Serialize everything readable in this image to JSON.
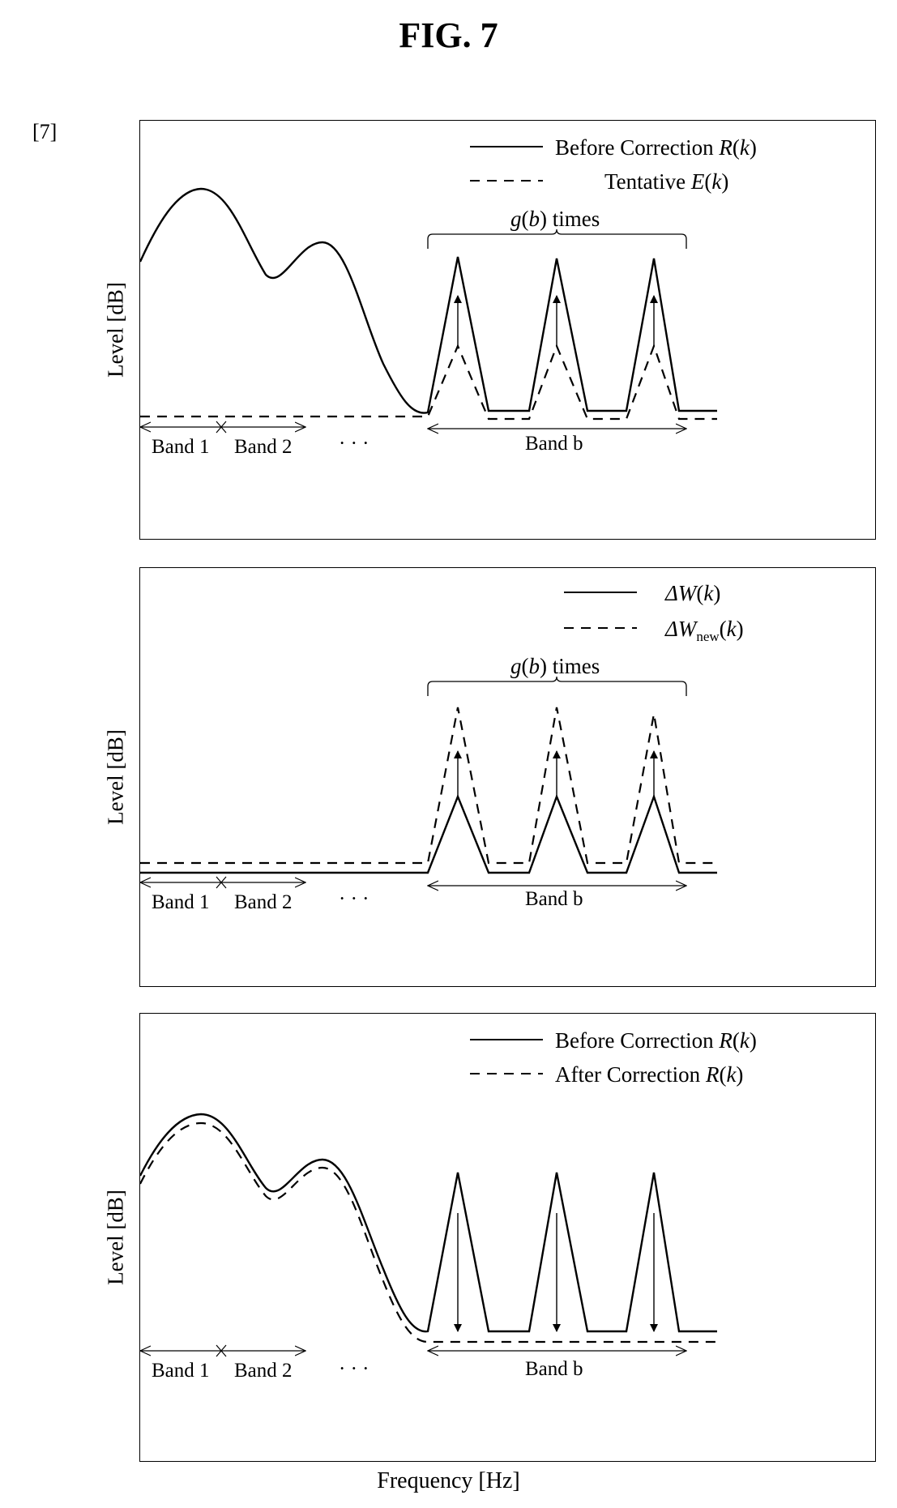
{
  "figure": {
    "title": "FIG. 7",
    "ref": "[7]",
    "x_axis_label": "Frequency [Hz]"
  },
  "panels": [
    {
      "y_axis_label": "Level [dB]",
      "legend": [
        {
          "style": "solid",
          "text": "Before Correction ",
          "math": "R",
          "arg": "k"
        },
        {
          "style": "dashed",
          "text": "Tentative ",
          "math": "E",
          "arg": "k"
        }
      ],
      "brace_text": "times",
      "brace_math": "g",
      "brace_arg": "b",
      "bands": [
        "Band 1",
        "Band 2"
      ],
      "ellipsis": "·  ·  ·",
      "band_b": "Band b"
    },
    {
      "y_axis_label": "Level [dB]",
      "legend": [
        {
          "style": "solid",
          "math": "ΔW",
          "arg": "k"
        },
        {
          "style": "dashed",
          "math": "ΔW",
          "sub": "new",
          "arg": "k"
        }
      ],
      "brace_text": "times",
      "brace_math": "g",
      "brace_arg": "b",
      "bands": [
        "Band 1",
        "Band 2"
      ],
      "ellipsis": "·  ·  ·",
      "band_b": "Band b"
    },
    {
      "y_axis_label": "Level [dB]",
      "legend": [
        {
          "style": "solid",
          "text": "Before Correction ",
          "math": "R",
          "arg": "k"
        },
        {
          "style": "dashed",
          "text": "After Correction ",
          "math": "R",
          "arg": "k"
        }
      ],
      "bands": [
        "Band 1",
        "Band 2"
      ],
      "ellipsis": "·  ·  ·",
      "band_b": "Band b"
    }
  ]
}
